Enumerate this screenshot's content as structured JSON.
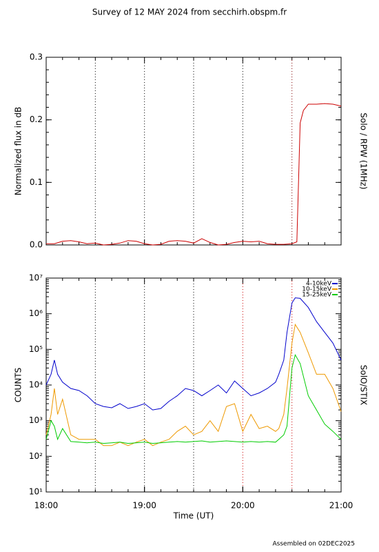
{
  "title": "Survey of 12 MAY 2024 from secchirh.obspm.fr",
  "footer": "Assembled on 02DEC2025",
  "chart_data": [
    {
      "type": "line",
      "ylabel": "Normalized flux in dB",
      "right_label": "Solo / RPW (1MHz)",
      "xlim": [
        "18:00",
        "21:00"
      ],
      "ylim": [
        0,
        0.3
      ],
      "yticks": [
        {
          "value": 0,
          "label": "0.0"
        },
        0.1,
        0.2,
        0.3
      ],
      "vlines": [
        {
          "x": "18:30",
          "color": "#000000"
        },
        {
          "x": "19:00",
          "color": "#000000"
        },
        {
          "x": "19:30",
          "color": "#000000"
        },
        {
          "x": "20:00",
          "color": "#000000"
        },
        {
          "x": "20:30",
          "color": "#800000"
        }
      ],
      "x": [
        "18:00",
        "18:05",
        "18:10",
        "18:15",
        "18:20",
        "18:25",
        "18:30",
        "18:35",
        "18:40",
        "18:45",
        "18:50",
        "18:55",
        "19:00",
        "19:05",
        "19:10",
        "19:15",
        "19:20",
        "19:25",
        "19:30",
        "19:35",
        "19:40",
        "19:45",
        "19:50",
        "19:55",
        "20:00",
        "20:05",
        "20:10",
        "20:15",
        "20:20",
        "20:25",
        "20:30",
        "20:33",
        "20:34",
        "20:35",
        "20:37",
        "20:40",
        "20:45",
        "20:50",
        "20:55",
        "21:00"
      ],
      "series": [
        {
          "name": "Solo / RPW (1MHz)",
          "color": "#cc0000",
          "values": [
            0.002,
            0.002,
            0.006,
            0.007,
            0.005,
            0.002,
            0.003,
            0.0,
            0.001,
            0.003,
            0.007,
            0.006,
            0.002,
            0.0,
            0.001,
            0.006,
            0.007,
            0.006,
            0.003,
            0.01,
            0.004,
            0.0,
            0.001,
            0.004,
            0.006,
            0.005,
            0.006,
            0.002,
            0.001,
            0.001,
            0.002,
            0.005,
            0.1,
            0.195,
            0.215,
            0.225,
            0.225,
            0.226,
            0.225,
            0.222
          ]
        }
      ]
    },
    {
      "type": "line",
      "xlabel": "Time (UT)",
      "ylabel": "COUNTS",
      "right_label": "SolO/STIX",
      "log_y": true,
      "legend": "upper right",
      "xlim": [
        "18:00",
        "21:00"
      ],
      "xticks": [
        "18:00",
        "19:00",
        "20:00",
        "21:00"
      ],
      "ylim": [
        10,
        10000000
      ],
      "yticks": [
        {
          "value": 10,
          "label": "10¹"
        },
        {
          "value": 100,
          "label": "10²"
        },
        {
          "value": 1000,
          "label": "10³"
        },
        {
          "value": 10000,
          "label": "10⁴"
        },
        {
          "value": 100000,
          "label": "10⁵"
        },
        {
          "value": 1000000,
          "label": "10⁶"
        },
        {
          "value": 10000000,
          "label": "10⁷"
        }
      ],
      "vlines": [
        {
          "x": "18:30",
          "color": "#000000"
        },
        {
          "x": "19:00",
          "color": "#000000"
        },
        {
          "x": "19:30",
          "color": "#000000"
        },
        {
          "x": "20:00",
          "color": "#cc0000"
        },
        {
          "x": "20:30",
          "color": "#cc0000"
        }
      ],
      "x": [
        "18:00",
        "18:03",
        "18:05",
        "18:07",
        "18:10",
        "18:15",
        "18:20",
        "18:25",
        "18:30",
        "18:35",
        "18:40",
        "18:45",
        "18:50",
        "18:55",
        "19:00",
        "19:05",
        "19:10",
        "19:15",
        "19:20",
        "19:25",
        "19:30",
        "19:35",
        "19:40",
        "19:45",
        "19:50",
        "19:55",
        "20:00",
        "20:05",
        "20:10",
        "20:15",
        "20:20",
        "20:22",
        "20:25",
        "20:27",
        "20:30",
        "20:32",
        "20:35",
        "20:40",
        "20:45",
        "20:50",
        "20:55",
        "21:00"
      ],
      "series": [
        {
          "name": "4-10keV",
          "color": "#0000cc",
          "values": [
            10000,
            20000,
            50000,
            20000,
            12000,
            8000,
            7000,
            5000,
            3000,
            2500,
            2300,
            3000,
            2200,
            2500,
            3000,
            2000,
            2200,
            3500,
            5000,
            8000,
            7000,
            5000,
            7000,
            10000,
            6000,
            13000,
            8000,
            5000,
            6000,
            8000,
            12000,
            20000,
            50000,
            300000,
            2000000,
            2800000,
            2700000,
            1500000,
            600000,
            300000,
            150000,
            50000
          ]
        },
        {
          "name": "10-15keV",
          "color": "#ee9900",
          "values": [
            400,
            1500,
            8000,
            1500,
            4000,
            400,
            300,
            300,
            300,
            200,
            200,
            250,
            200,
            250,
            300,
            200,
            250,
            300,
            500,
            700,
            400,
            500,
            1000,
            500,
            2500,
            3000,
            500,
            1500,
            600,
            700,
            500,
            600,
            1500,
            8000,
            150000,
            500000,
            300000,
            80000,
            20000,
            20000,
            8000,
            1800
          ]
        },
        {
          "name": "15-25keV",
          "color": "#00cc00",
          "values": [
            300,
            1000,
            700,
            300,
            600,
            260,
            250,
            240,
            250,
            230,
            240,
            250,
            230,
            240,
            250,
            230,
            240,
            250,
            260,
            250,
            260,
            270,
            250,
            260,
            270,
            260,
            250,
            260,
            250,
            260,
            250,
            300,
            400,
            700,
            30000,
            70000,
            40000,
            5000,
            2000,
            800,
            500,
            300
          ]
        }
      ]
    }
  ]
}
